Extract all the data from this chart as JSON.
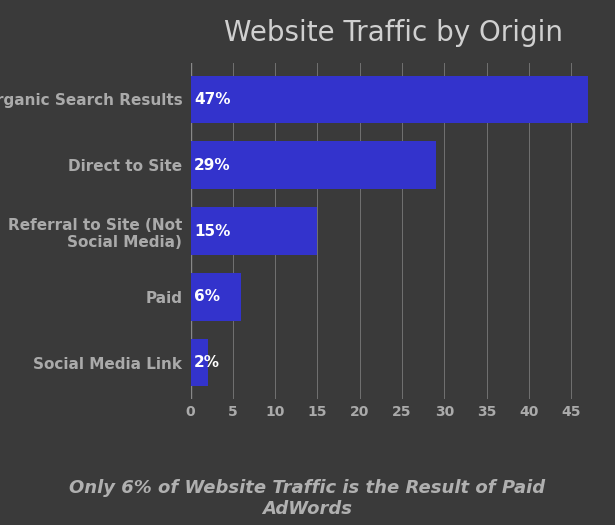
{
  "title": "Website Traffic by Origin",
  "subtitle": "Only 6% of Website Traffic is the Result of Paid\nAdWords",
  "categories": [
    "Organic Search Results",
    "Direct to Site",
    "Referral to Site (Not\nSocial Media)",
    "Paid",
    "Social Media Link"
  ],
  "values": [
    47,
    29,
    15,
    6,
    2
  ],
  "labels": [
    "47%",
    "29%",
    "15%",
    "6%",
    "2%"
  ],
  "bar_color": "#3333cc",
  "background_color": "#3a3a3a",
  "text_color": "#c8c8c8",
  "title_color": "#d0d0d0",
  "subtitle_color": "#b0b0b0",
  "label_color": "#ffffff",
  "tick_color": "#aaaaaa",
  "grid_color": "#888888",
  "xlim": [
    0,
    48
  ],
  "xticks": [
    0,
    5,
    10,
    15,
    20,
    25,
    30,
    35,
    40,
    45
  ],
  "title_fontsize": 20,
  "subtitle_fontsize": 13,
  "ylabel_fontsize": 11,
  "label_fontsize": 11,
  "tick_fontsize": 10
}
